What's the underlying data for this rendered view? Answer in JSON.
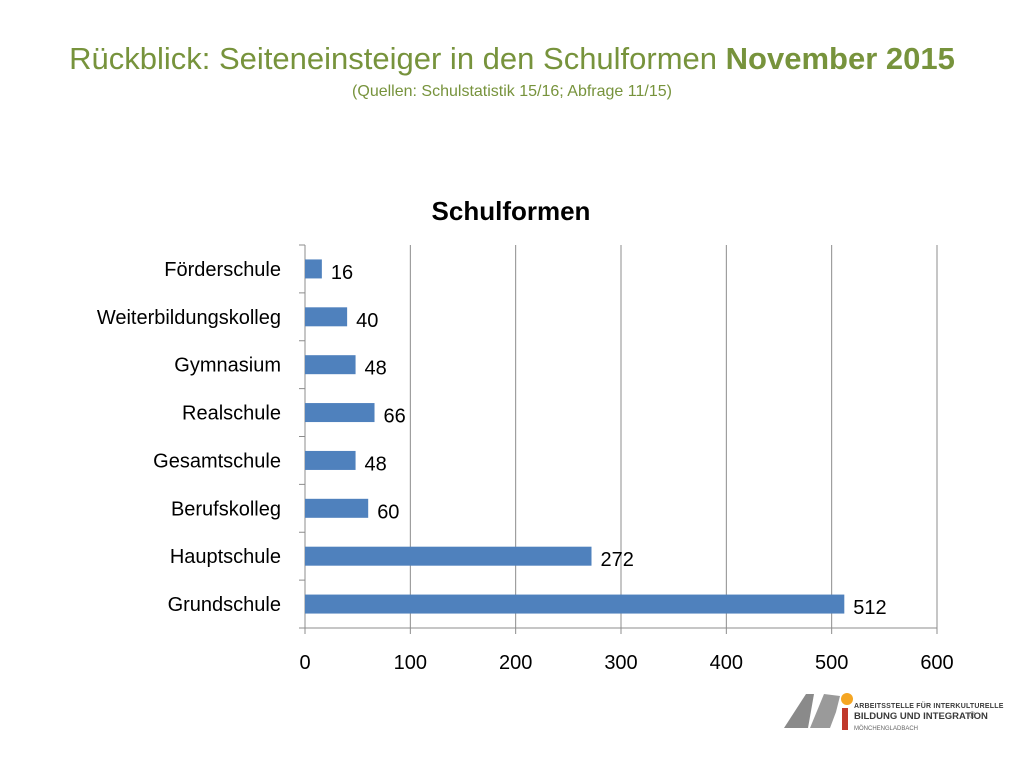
{
  "slide": {
    "title_regular": "Rückblick: Seiteneinsteiger in den Schulformen",
    "title_bold": "November 2015",
    "subtitle": "(Quellen: Schulstatistik 15/16; Abfrage 11/15)",
    "title_color": "#77933C"
  },
  "logo": {
    "name": "abi-logo",
    "line1": "ARBEITSSTELLE FÜR INTERKULTURELLE",
    "line2": "BILDUNG UND INTEGRATION",
    "mark": "®",
    "line3": "MÖNCHENGLADBACH",
    "colors": {
      "grey": "#8a8a8a",
      "orange": "#F5A623",
      "red": "#C0392B"
    }
  },
  "chart_data": {
    "type": "bar",
    "orientation": "horizontal",
    "title": "Schulformen",
    "categories": [
      "Förderschule",
      "Weiterbildungskolleg",
      "Gymnasium",
      "Realschule",
      "Gesamtschule",
      "Berufskolleg",
      "Hauptschule",
      "Grundschule"
    ],
    "values": [
      16,
      40,
      48,
      66,
      48,
      60,
      272,
      512
    ],
    "xlim": [
      0,
      600
    ],
    "xticks": [
      0,
      100,
      200,
      300,
      400,
      500,
      600
    ],
    "grid": "vertical",
    "legend": "none",
    "data_labels": true,
    "bar_color": "#4F81BD"
  }
}
